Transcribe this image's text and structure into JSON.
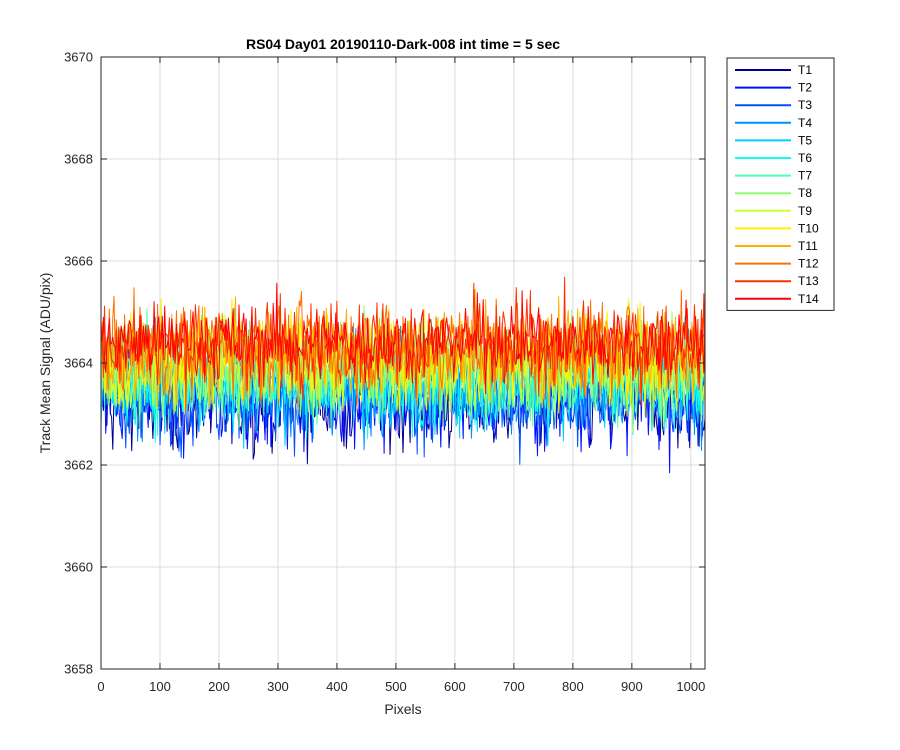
{
  "chart_data": {
    "type": "line",
    "title": "RS04 Day01 20190110-Dark-008 int time = 5 sec",
    "xlabel": "Pixels",
    "ylabel": "Track Mean Signal (ADU/pix)",
    "xlim": [
      0,
      1024
    ],
    "ylim": [
      3658,
      3670
    ],
    "x_ticks": [
      0,
      100,
      200,
      300,
      400,
      500,
      600,
      700,
      800,
      900,
      1000
    ],
    "y_ticks": [
      3658,
      3660,
      3662,
      3664,
      3666,
      3668,
      3670
    ],
    "grid": true,
    "legend_position": "outside-top-right",
    "series": [
      {
        "name": "T1",
        "color": "#00008f",
        "mean": 3663.2,
        "spread": 0.9
      },
      {
        "name": "T2",
        "color": "#0010ff",
        "mean": 3663.3,
        "spread": 0.9
      },
      {
        "name": "T3",
        "color": "#0050ff",
        "mean": 3663.4,
        "spread": 0.9
      },
      {
        "name": "T4",
        "color": "#0090ff",
        "mean": 3663.5,
        "spread": 0.9
      },
      {
        "name": "T5",
        "color": "#00d0ff",
        "mean": 3663.6,
        "spread": 0.9
      },
      {
        "name": "T6",
        "color": "#10ffef",
        "mean": 3663.7,
        "spread": 0.9
      },
      {
        "name": "T7",
        "color": "#50ffaf",
        "mean": 3663.8,
        "spread": 0.9
      },
      {
        "name": "T8",
        "color": "#90ff6f",
        "mean": 3663.9,
        "spread": 0.9
      },
      {
        "name": "T9",
        "color": "#d0ff2f",
        "mean": 3664.0,
        "spread": 0.9
      },
      {
        "name": "T10",
        "color": "#ffef00",
        "mean": 3664.1,
        "spread": 0.9
      },
      {
        "name": "T11",
        "color": "#ffaf00",
        "mean": 3664.2,
        "spread": 0.9
      },
      {
        "name": "T12",
        "color": "#ff7000",
        "mean": 3664.3,
        "spread": 0.85
      },
      {
        "name": "T13",
        "color": "#ff3000",
        "mean": 3664.4,
        "spread": 0.8
      },
      {
        "name": "T14",
        "color": "#ff0000",
        "mean": 3664.4,
        "spread": 0.75
      }
    ]
  }
}
